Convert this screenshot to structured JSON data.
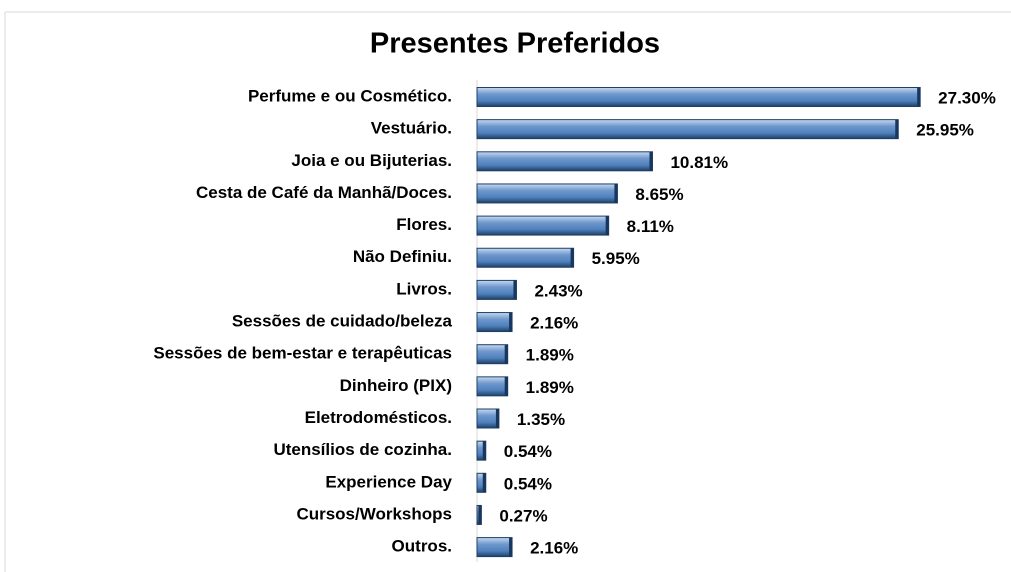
{
  "chart_data": {
    "type": "bar",
    "orientation": "horizontal",
    "title": "Presentes Preferidos",
    "categories": [
      "Perfume e ou Cosmético.",
      "Vestuário.",
      "Joia e ou Bijuterias.",
      "Cesta de Café da Manhã/Doces.",
      "Flores.",
      "Não Definiu.",
      "Livros.",
      "Sessões de cuidado/beleza",
      "Sessões de bem-estar e terapêuticas",
      "Dinheiro (PIX)",
      "Eletrodomésticos.",
      "Utensílios de cozinha.",
      "Experience Day",
      "Cursos/Workshops",
      "Outros."
    ],
    "values": [
      27.3,
      25.95,
      10.81,
      8.65,
      8.11,
      5.95,
      2.43,
      2.16,
      1.89,
      1.89,
      1.35,
      0.54,
      0.54,
      0.27,
      2.16
    ],
    "value_labels": [
      "27.30%",
      "25.95%",
      "10.81%",
      "8.65%",
      "8.11%",
      "5.95%",
      "2.43%",
      "2.16%",
      "1.89%",
      "1.89%",
      "1.35%",
      "0.54%",
      "0.54%",
      "0.27%",
      "2.16%"
    ],
    "color": "#4f81bd",
    "xlim": [
      0,
      30
    ]
  }
}
